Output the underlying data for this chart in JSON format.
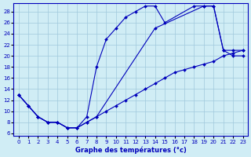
{
  "xlabel": "Graphe des températures (°c)",
  "xlim": [
    -0.5,
    23.5
  ],
  "ylim": [
    5.5,
    29.5
  ],
  "xticks": [
    0,
    1,
    2,
    3,
    4,
    5,
    6,
    7,
    8,
    9,
    10,
    11,
    12,
    13,
    14,
    15,
    16,
    17,
    18,
    19,
    20,
    21,
    22,
    23
  ],
  "yticks": [
    6,
    8,
    10,
    12,
    14,
    16,
    18,
    20,
    22,
    24,
    26,
    28
  ],
  "background_color": "#d0edf5",
  "grid_color": "#a0c8dc",
  "line_color": "#0000bb",
  "series": [
    {
      "x": [
        0,
        1,
        2,
        3,
        4,
        5,
        6,
        7,
        8,
        9,
        10,
        11,
        12,
        13,
        14,
        15,
        18,
        19,
        20,
        21,
        22,
        23
      ],
      "y": [
        13,
        11,
        9,
        8,
        8,
        7,
        7,
        9,
        18,
        23,
        25,
        27,
        28,
        29,
        29,
        26,
        29,
        29,
        29,
        21,
        20,
        20
      ]
    },
    {
      "x": [
        0,
        1,
        2,
        3,
        4,
        5,
        6,
        7,
        8,
        9,
        10,
        11,
        12,
        13,
        14,
        15,
        16,
        17,
        18,
        19,
        20,
        21,
        22,
        23
      ],
      "y": [
        13,
        11,
        9,
        8,
        8,
        7,
        7,
        8,
        9,
        10,
        11,
        12,
        13,
        14,
        15,
        16,
        17,
        17.5,
        18,
        18.5,
        19,
        20,
        20.5,
        21
      ]
    },
    {
      "x": [
        0,
        1,
        2,
        3,
        4,
        5,
        6,
        7,
        8,
        14,
        19,
        20,
        21,
        22,
        23
      ],
      "y": [
        13,
        11,
        9,
        8,
        8,
        7,
        7,
        8,
        9,
        25,
        29,
        29,
        21,
        21,
        21
      ]
    }
  ]
}
